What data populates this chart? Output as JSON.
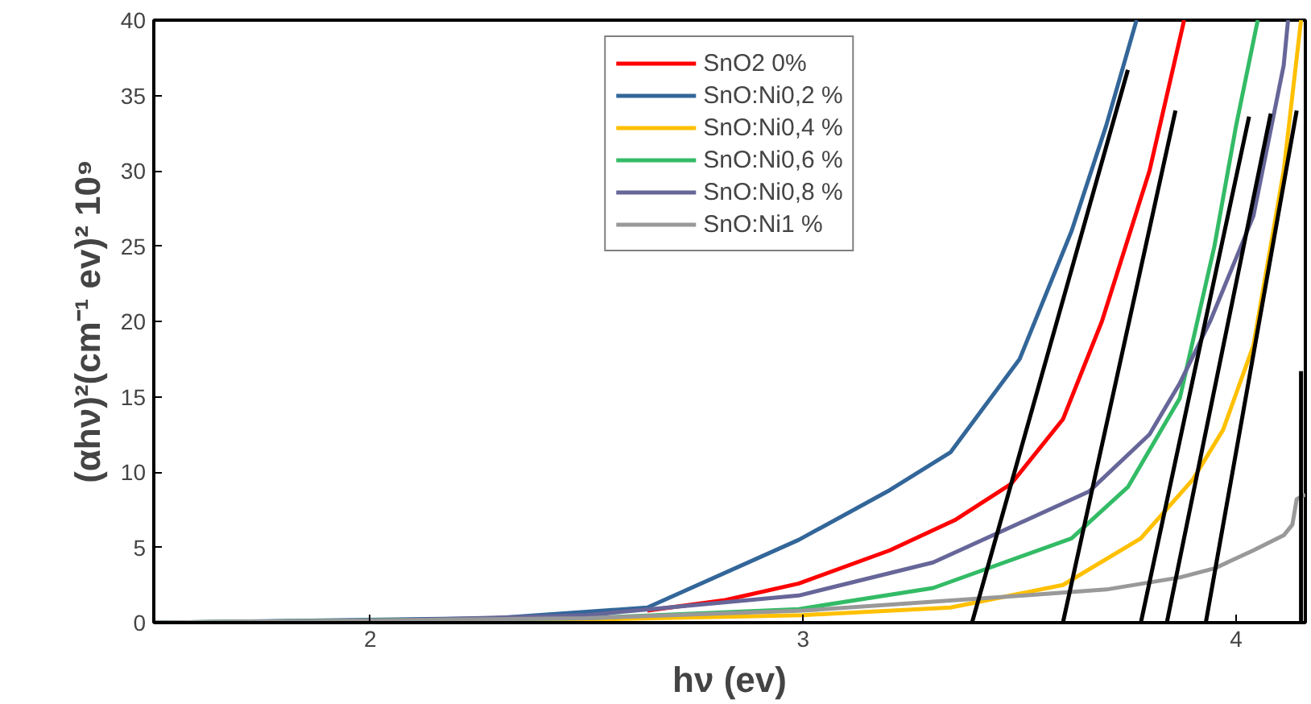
{
  "chart_data": {
    "type": "line",
    "xlabel": "hν (ev)",
    "ylabel": "(αhν)²(cm⁻¹ ev)² 10⁹",
    "xlim": [
      1.5,
      4.16
    ],
    "ylim": [
      0,
      40
    ],
    "xticks": [
      2,
      3,
      4
    ],
    "yticks": [
      0,
      5,
      10,
      15,
      20,
      25,
      30,
      35,
      40
    ],
    "grid": false,
    "legend": "top center",
    "marker": "none",
    "line_style": "solid",
    "series": [
      {
        "name": "SnO2 0%",
        "color": "#ff0000",
        "x": [
          2.64,
          2.82,
          2.99,
          3.2,
          3.35,
          3.48,
          3.6,
          3.69,
          3.8,
          3.88
        ],
        "values": [
          0.8,
          1.5,
          2.6,
          4.8,
          6.8,
          9.2,
          13.5,
          20,
          30,
          40
        ]
      },
      {
        "name": "SnO:Ni0,2 %",
        "color": "#336699",
        "x": [
          1.5,
          2.29,
          2.64,
          2.99,
          3.2,
          3.34,
          3.5,
          3.62,
          3.7,
          3.77
        ],
        "values": [
          0,
          0.3,
          1.0,
          5.5,
          8.8,
          11.3,
          17.5,
          26,
          33,
          40
        ]
      },
      {
        "name": "SnO:Ni0,4 %",
        "color": "#ffc000",
        "x": [
          1.5,
          2.5,
          3.0,
          3.34,
          3.6,
          3.78,
          3.9,
          3.97,
          4.04,
          4.11,
          4.15
        ],
        "values": [
          0,
          0.2,
          0.5,
          1.0,
          2.5,
          5.6,
          9.5,
          12.8,
          18.4,
          30,
          40
        ]
      },
      {
        "name": "SnO:Ni0,6 %",
        "color": "#33bb66",
        "x": [
          1.5,
          2.5,
          2.99,
          3.3,
          3.62,
          3.75,
          3.87,
          3.95,
          4.0,
          4.05
        ],
        "values": [
          0,
          0.3,
          0.9,
          2.3,
          5.6,
          9,
          14.9,
          25,
          33,
          40
        ]
      },
      {
        "name": "SnO:Ni0,8 %",
        "color": "#666699",
        "x": [
          1.5,
          2.0,
          2.5,
          2.99,
          3.3,
          3.66,
          3.8,
          3.87,
          3.94,
          4.04,
          4.11,
          4.12
        ],
        "values": [
          0,
          0.1,
          0.5,
          1.8,
          4,
          8.7,
          12.5,
          15.9,
          20,
          27,
          37,
          40
        ]
      },
      {
        "name": "SnO:Ni1 %",
        "color": "#999999",
        "x": [
          1.5,
          2.5,
          3.0,
          3.51,
          3.7,
          3.87,
          3.95,
          4.04,
          4.11,
          4.13,
          4.14,
          4.16
        ],
        "values": [
          0,
          0.3,
          0.8,
          1.8,
          2.2,
          3,
          3.6,
          4.8,
          5.8,
          6.5,
          8.2,
          8.5
        ]
      },
      {
        "color": "#000000",
        "x": [
          3.39,
          3.75
        ],
        "values": [
          0,
          36.7
        ]
      },
      {
        "color": "#000000",
        "x": [
          3.6,
          3.86
        ],
        "values": [
          0,
          34
        ]
      },
      {
        "color": "#000000",
        "x": [
          3.78,
          4.03
        ],
        "values": [
          0,
          33.6
        ]
      },
      {
        "color": "#000000",
        "x": [
          3.84,
          4.08
        ],
        "values": [
          0,
          33.8
        ]
      },
      {
        "color": "#000000",
        "x": [
          3.93,
          4.14
        ],
        "values": [
          0,
          34
        ]
      },
      {
        "color": "#000000",
        "x": [
          4.15,
          4.15
        ],
        "values": [
          0,
          16.7
        ]
      }
    ]
  }
}
